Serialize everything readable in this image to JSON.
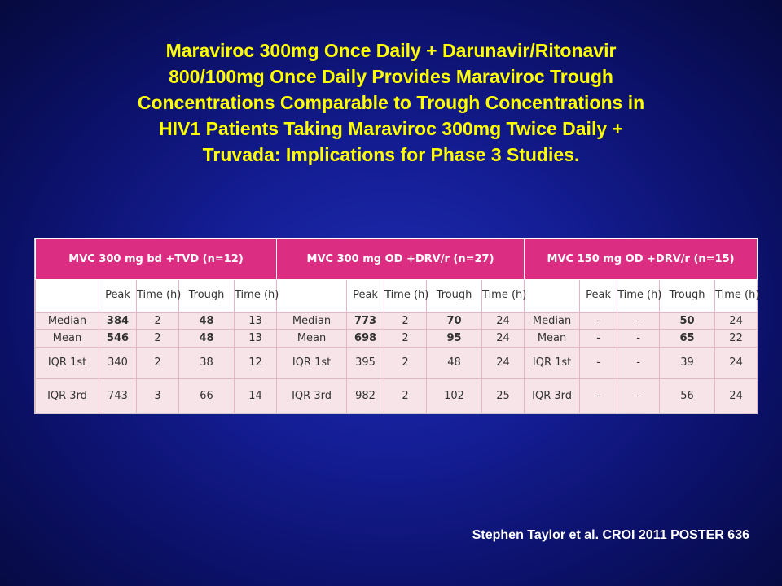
{
  "slide": {
    "title_lines": [
      "Maraviroc 300mg Once Daily + Darunavir/Ritonavir",
      "800/100mg Once Daily Provides Maraviroc Trough",
      "Concentrations Comparable to Trough Concentrations in",
      "HIV1 Patients Taking Maraviroc 300mg Twice Daily +",
      "Truvada: Implications for Phase 3 Studies."
    ],
    "citation": "Stephen Taylor et al. CROI 2011 POSTER 636"
  },
  "table": {
    "groups": [
      "MVC 300 mg bd +TVD   (n=12)",
      "MVC  300 mg OD +DRV/r (n=27)",
      "MVC  150 mg OD +DRV/r (n=15)"
    ],
    "subheaders": [
      "",
      "Peak",
      "Time (h)",
      "Trough",
      "Time (h)"
    ],
    "rows": [
      {
        "label": "Median",
        "g": [
          [
            "384",
            "2",
            "48",
            "13"
          ],
          [
            "773",
            "2",
            "70",
            "24"
          ],
          [
            "-",
            "-",
            "50",
            "24"
          ]
        ]
      },
      {
        "label": "Mean",
        "g": [
          [
            "546",
            "2",
            "48",
            "13"
          ],
          [
            "698",
            "2",
            "95",
            "24"
          ],
          [
            "-",
            "-",
            "65",
            "22"
          ]
        ]
      },
      {
        "label": "IQR 1st",
        "g": [
          [
            "340",
            "2",
            "38",
            "12"
          ],
          [
            "395",
            "2",
            "48",
            "24"
          ],
          [
            "-",
            "-",
            "39",
            "24"
          ]
        ]
      },
      {
        "label": "IQR 3rd",
        "g": [
          [
            "743",
            "3",
            "66",
            "14"
          ],
          [
            "982",
            "2",
            "102",
            "25"
          ],
          [
            "-",
            "-",
            "56",
            "24"
          ]
        ]
      }
    ]
  }
}
